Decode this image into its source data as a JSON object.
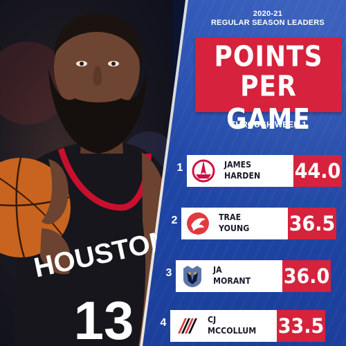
{
  "header": {
    "season_line1": "2020-21",
    "season_line2": "REGULAR SEASON LEADERS",
    "title_line1": "POINTS",
    "title_line2": "PER GAME",
    "subtitle": "THROUGH WEEK 1"
  },
  "photo": {
    "jersey_text": "HOUSTON",
    "jersey_number": "13"
  },
  "leaders": [
    {
      "rank": "1",
      "first": "JAMES",
      "last": "HARDEN",
      "value": "44.0",
      "team_icon": "rockets-logo-icon",
      "team_color": "#ce1141"
    },
    {
      "rank": "2",
      "first": "TRAE",
      "last": "YOUNG",
      "value": "36.5",
      "team_icon": "hawks-logo-icon",
      "team_color": "#e03a3e"
    },
    {
      "rank": "3",
      "first": "JA",
      "last": "MORANT",
      "value": "36.0",
      "team_icon": "grizzlies-logo-icon",
      "team_color": "#5d76a9"
    },
    {
      "rank": "4",
      "first": "CJ",
      "last": "MCCOLLUM",
      "value": "33.5",
      "team_icon": "blazers-logo-icon",
      "team_color": "#e03a3e"
    }
  ],
  "colors": {
    "panel_blue": "#1f47a8",
    "accent_red": "#d6223c",
    "white": "#ffffff"
  }
}
